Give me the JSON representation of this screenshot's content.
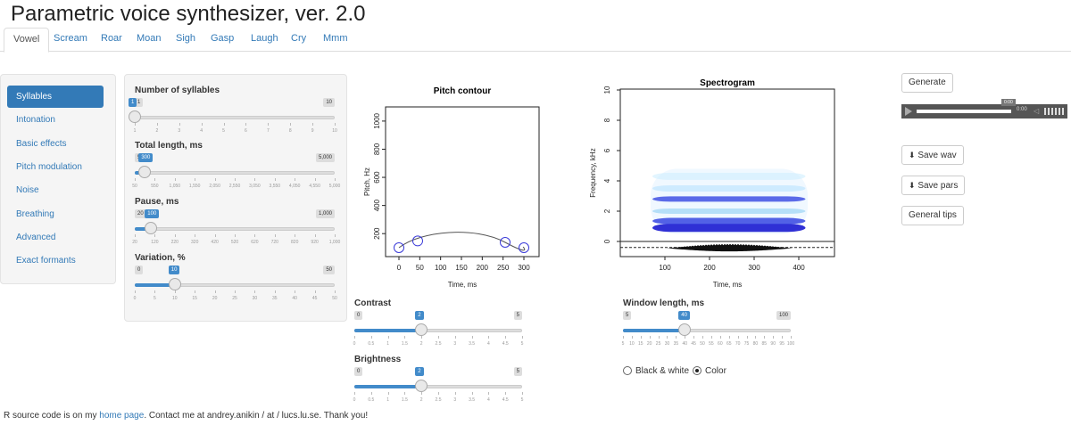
{
  "app": {
    "title": "Parametric voice synthesizer, ver. 2.0"
  },
  "tabs": [
    "Vowel",
    "Scream",
    "Roar",
    "Moan",
    "Sigh",
    "Gasp",
    "Laugh",
    "Cry",
    "Mmm"
  ],
  "sidebar": {
    "items": [
      "Syllables",
      "Intonation",
      "Basic effects",
      "Pitch modulation",
      "Noise",
      "Breathing",
      "Advanced",
      "Exact formants"
    ]
  },
  "sliders": {
    "syllables": {
      "label": "Number of syllables",
      "min": 1,
      "max": 10,
      "value": 1,
      "min_label": "1",
      "max_label": "10",
      "value_label": "1",
      "ticks": [
        "1",
        "2",
        "3",
        "4",
        "5",
        "6",
        "7",
        "8",
        "9",
        "10"
      ]
    },
    "length": {
      "label": "Total length, ms",
      "min": 50,
      "max": 5000,
      "value": 300,
      "min_label": "50",
      "max_label": "5,000",
      "value_label": "300",
      "ticks": [
        "50",
        "550",
        "1,050",
        "1,550",
        "2,050",
        "2,550",
        "3,050",
        "3,550",
        "4,050",
        "4,550",
        "5,000"
      ]
    },
    "pause": {
      "label": "Pause, ms",
      "min": 20,
      "max": 1000,
      "value": 100,
      "min_label": "20",
      "max_label": "1,000",
      "value_label": "100",
      "ticks": [
        "20",
        "120",
        "220",
        "320",
        "420",
        "520",
        "620",
        "720",
        "820",
        "920",
        "1,000"
      ]
    },
    "variation": {
      "label": "Variation, %",
      "min": 0,
      "max": 50,
      "value": 10,
      "min_label": "0",
      "max_label": "50",
      "value_label": "10",
      "ticks": [
        "0",
        "5",
        "10",
        "15",
        "20",
        "25",
        "30",
        "35",
        "40",
        "45",
        "50"
      ]
    },
    "contrast": {
      "label": "Contrast",
      "min": 0,
      "max": 5,
      "value": 2,
      "min_label": "0",
      "max_label": "5",
      "value_label": "2",
      "ticks": [
        "0",
        "0.5",
        "1",
        "1.5",
        "2",
        "2.5",
        "3",
        "3.5",
        "4",
        "4.5",
        "5"
      ]
    },
    "brightness": {
      "label": "Brightness",
      "min": 0,
      "max": 5,
      "value": 2,
      "min_label": "0",
      "max_label": "5",
      "value_label": "2",
      "ticks": [
        "0",
        "0.5",
        "1",
        "1.5",
        "2",
        "2.5",
        "3",
        "3.5",
        "4",
        "4.5",
        "5"
      ]
    },
    "window": {
      "label": "Window length, ms",
      "min": 5,
      "max": 100,
      "value": 40,
      "min_label": "5",
      "max_label": "100",
      "value_label": "40",
      "ticks": [
        "5",
        "10",
        "15",
        "20",
        "25",
        "30",
        "35",
        "40",
        "45",
        "50",
        "55",
        "60",
        "65",
        "70",
        "75",
        "80",
        "85",
        "90",
        "95",
        "100"
      ]
    }
  },
  "pitch_plot": {
    "title": "Pitch contour",
    "xlabel": "Time, ms",
    "ylabel": "Pitch, Hz",
    "xticks": [
      "0",
      "50",
      "100",
      "150",
      "200",
      "250",
      "300"
    ],
    "yticks": [
      "200",
      "400",
      "600",
      "800",
      "1000"
    ],
    "xlim": [
      0,
      300
    ],
    "ylim": [
      100,
      1050
    ],
    "anchors": [
      {
        "t": 0,
        "hz": 100
      },
      {
        "t": 45,
        "hz": 148
      },
      {
        "t": 255,
        "hz": 138
      },
      {
        "t": 300,
        "hz": 100
      }
    ]
  },
  "spectrogram": {
    "title": "Spectrogram",
    "xlabel": "Time, ms",
    "ylabel": "Frequency, kHz",
    "xticks": [
      "100",
      "200",
      "300",
      "400"
    ],
    "yticks": [
      "0",
      "2",
      "4",
      "6",
      "8",
      "10"
    ],
    "xlim": [
      0,
      480
    ],
    "ylim": [
      -1,
      10
    ]
  },
  "buttons": {
    "generate": "Generate",
    "save_wav": "Save wav",
    "save_pars": "Save pars",
    "general_tips": "General tips"
  },
  "audio": {
    "time": "0:00",
    "tooltip": "0:00"
  },
  "color_mode": {
    "options": [
      "Black & white",
      "Color"
    ],
    "selected": "Color"
  },
  "footer": {
    "prefix": "R source code is on my ",
    "link": "home page",
    "suffix": ". Contact me at andrey.anikin / at / lucs.lu.se. Thank you!"
  }
}
